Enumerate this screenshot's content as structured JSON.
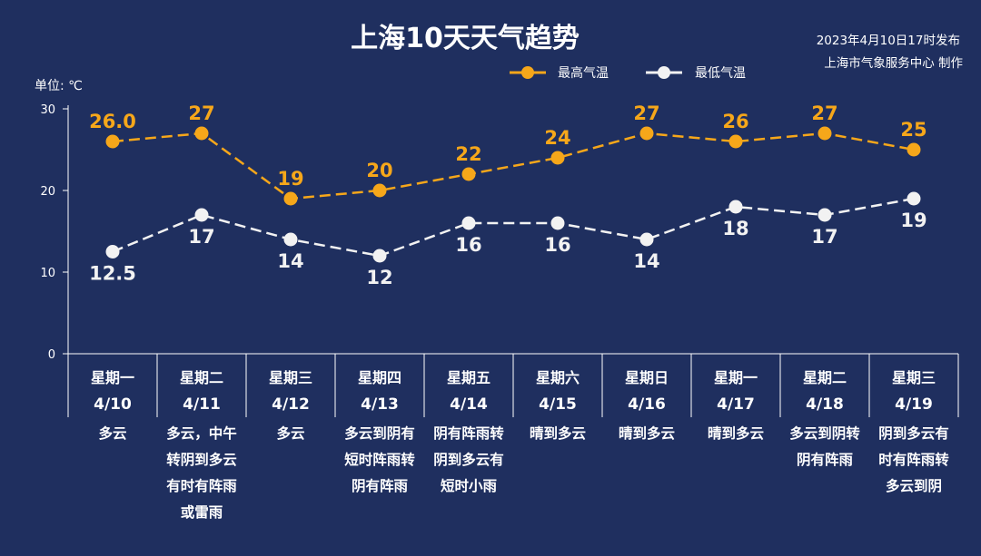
{
  "header": {
    "title": "上海10天天气趋势",
    "publish_time": "2023年4月10日17时发布",
    "publisher": "上海市气象服务中心 制作"
  },
  "colors": {
    "background": "#1f2f5f",
    "high": "#f6a71a",
    "low": "#f2f2f2",
    "axis": "#ffffff"
  },
  "chart_data": {
    "type": "line",
    "title": "上海10天天气趋势",
    "ylabel": "单位: ℃",
    "ylim": [
      0,
      30
    ],
    "yticks": [
      0,
      10,
      20,
      30
    ],
    "grid": false,
    "legend_position": "top-right",
    "categories": [
      "4/10",
      "4/11",
      "4/12",
      "4/13",
      "4/14",
      "4/15",
      "4/16",
      "4/17",
      "4/18",
      "4/19"
    ],
    "weekdays": [
      "星期一",
      "星期二",
      "星期三",
      "星期四",
      "星期五",
      "星期六",
      "星期日",
      "星期一",
      "星期二",
      "星期三"
    ],
    "series": [
      {
        "name": "最高气温",
        "values": [
          26.0,
          27,
          19,
          20,
          22,
          24,
          27,
          26,
          27,
          25
        ],
        "labels": [
          "26.0",
          "27",
          "19",
          "20",
          "22",
          "24",
          "27",
          "26",
          "27",
          "25"
        ]
      },
      {
        "name": "最低气温",
        "values": [
          12.5,
          17,
          14,
          12,
          16,
          16,
          14,
          18,
          17,
          19
        ],
        "labels": [
          "12.5",
          "17",
          "14",
          "12",
          "16",
          "16",
          "14",
          "18",
          "17",
          "19"
        ]
      }
    ],
    "weather": [
      [
        "多云"
      ],
      [
        "多云，中午",
        "转阴到多云",
        "有时有阵雨",
        "或雷雨"
      ],
      [
        "多云"
      ],
      [
        "多云到阴有",
        "短时阵雨转",
        "阴有阵雨"
      ],
      [
        "阴有阵雨转",
        "阴到多云有",
        "短时小雨"
      ],
      [
        "晴到多云"
      ],
      [
        "晴到多云"
      ],
      [
        "晴到多云"
      ],
      [
        "多云到阴转",
        "阴有阵雨"
      ],
      [
        "阴到多云有",
        "时有阵雨转",
        "多云到阴"
      ]
    ]
  }
}
